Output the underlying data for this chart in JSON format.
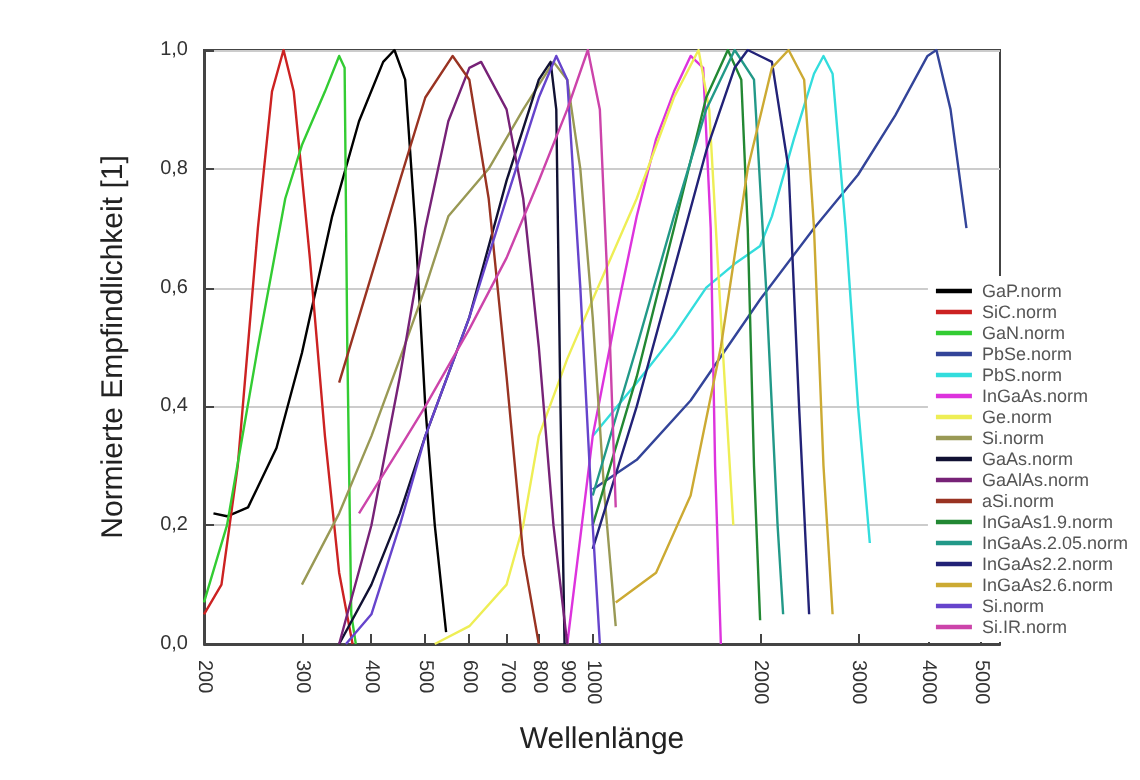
{
  "chart_data": {
    "type": "line",
    "xlabel": "Wellenlänge",
    "ylabel": "Normierte Empfindlichkeit [1]",
    "log": "x",
    "xlim": [
      200,
      5400
    ],
    "ylim": [
      0,
      1
    ],
    "xticks": [
      200,
      300,
      400,
      500,
      600,
      700,
      800,
      900,
      1000,
      2000,
      3000,
      4000,
      5000
    ],
    "yticks": [
      {
        "value": 0,
        "label": "0,0"
      },
      {
        "value": 0.2,
        "label": "0,2"
      },
      {
        "value": 0.4,
        "label": "0,4"
      },
      {
        "value": 0.6,
        "label": "0,6"
      },
      {
        "value": 0.8,
        "label": "0,8"
      },
      {
        "value": 1,
        "label": "1,0"
      }
    ],
    "grid": "y",
    "legend": "right",
    "marker": "none",
    "line_style": "solid",
    "series": [
      {
        "name": "GaP.norm",
        "color": "#000000",
        "x": [
          208,
          220,
          240,
          270,
          300,
          340,
          380,
          420,
          440,
          460,
          480,
          500,
          520,
          545
        ],
        "values": [
          0.22,
          0.215,
          0.23,
          0.33,
          0.49,
          0.72,
          0.88,
          0.98,
          1.0,
          0.95,
          0.7,
          0.4,
          0.2,
          0.02
        ]
      },
      {
        "name": "SiC.norm",
        "color": "#cc2222",
        "x": [
          200,
          215,
          230,
          250,
          265,
          278,
          290,
          310,
          330,
          350,
          370
        ],
        "values": [
          0.05,
          0.1,
          0.3,
          0.7,
          0.93,
          1.0,
          0.93,
          0.65,
          0.35,
          0.12,
          0.0
        ]
      },
      {
        "name": "GaN.norm",
        "color": "#33cc33",
        "x": [
          200,
          220,
          250,
          280,
          300,
          330,
          350,
          358,
          362,
          368,
          375
        ],
        "values": [
          0.07,
          0.2,
          0.5,
          0.75,
          0.84,
          0.93,
          0.99,
          0.97,
          0.5,
          0.05,
          0.0
        ]
      },
      {
        "name": "PbSe.norm",
        "color": "#334499",
        "x": [
          1000,
          1200,
          1500,
          2000,
          2500,
          3000,
          3500,
          4000,
          4150,
          4400,
          4700
        ],
        "values": [
          0.26,
          0.31,
          0.41,
          0.58,
          0.7,
          0.79,
          0.89,
          0.99,
          1.0,
          0.9,
          0.7
        ]
      },
      {
        "name": "PbS.norm",
        "color": "#33dddd",
        "x": [
          1000,
          1200,
          1400,
          1600,
          1800,
          2000,
          2100,
          2300,
          2500,
          2600,
          2700,
          2850,
          3000,
          3150
        ],
        "values": [
          0.35,
          0.44,
          0.52,
          0.6,
          0.64,
          0.67,
          0.72,
          0.85,
          0.96,
          0.99,
          0.96,
          0.7,
          0.4,
          0.17
        ]
      },
      {
        "name": "InGaAs.norm",
        "color": "#dd33dd",
        "x": [
          900,
          1000,
          1100,
          1200,
          1300,
          1400,
          1500,
          1580,
          1630,
          1660,
          1700
        ],
        "values": [
          0.0,
          0.35,
          0.55,
          0.72,
          0.85,
          0.93,
          0.99,
          0.97,
          0.7,
          0.3,
          0.0
        ]
      },
      {
        "name": "Ge.norm",
        "color": "#eeee55",
        "x": [
          520,
          600,
          700,
          750,
          800,
          900,
          1000,
          1200,
          1400,
          1550,
          1620,
          1700,
          1790
        ],
        "values": [
          0.0,
          0.03,
          0.1,
          0.2,
          0.35,
          0.48,
          0.58,
          0.75,
          0.92,
          1.0,
          0.9,
          0.55,
          0.2
        ]
      },
      {
        "name": "Si.norm",
        "color": "#999955",
        "x": [
          300,
          350,
          400,
          450,
          500,
          550,
          650,
          750,
          850,
          900,
          950,
          1000,
          1050,
          1100
        ],
        "values": [
          0.1,
          0.22,
          0.35,
          0.48,
          0.6,
          0.72,
          0.8,
          0.9,
          0.98,
          0.95,
          0.8,
          0.55,
          0.25,
          0.03
        ]
      },
      {
        "name": "GaAs.norm",
        "color": "#111133",
        "x": [
          350,
          400,
          450,
          500,
          600,
          700,
          800,
          840,
          860,
          875,
          890
        ],
        "values": [
          0.0,
          0.1,
          0.22,
          0.35,
          0.55,
          0.78,
          0.95,
          0.98,
          0.9,
          0.4,
          0.0
        ]
      },
      {
        "name": "GaAlAs.norm",
        "color": "#772277",
        "x": [
          350,
          400,
          450,
          500,
          550,
          600,
          630,
          700,
          750,
          800,
          850,
          900
        ],
        "values": [
          0.0,
          0.2,
          0.45,
          0.7,
          0.88,
          0.97,
          0.98,
          0.9,
          0.75,
          0.5,
          0.2,
          0.0
        ]
      },
      {
        "name": "aSi.norm",
        "color": "#993322",
        "x": [
          350,
          400,
          450,
          500,
          560,
          600,
          650,
          700,
          750,
          800
        ],
        "values": [
          0.44,
          0.62,
          0.78,
          0.92,
          0.99,
          0.95,
          0.75,
          0.45,
          0.15,
          0.0
        ]
      },
      {
        "name": "InGaAs1.9.norm",
        "color": "#228833",
        "x": [
          1000,
          1200,
          1400,
          1600,
          1750,
          1850,
          1900,
          1950,
          2000
        ],
        "values": [
          0.2,
          0.45,
          0.7,
          0.92,
          1.0,
          0.95,
          0.7,
          0.3,
          0.04
        ]
      },
      {
        "name": "InGaAs.2.05.norm",
        "color": "#229988",
        "x": [
          1000,
          1200,
          1400,
          1600,
          1800,
          1950,
          2050,
          2150,
          2200
        ],
        "values": [
          0.25,
          0.5,
          0.72,
          0.9,
          1.0,
          0.95,
          0.6,
          0.2,
          0.05
        ]
      },
      {
        "name": "InGaAs2.2.norm",
        "color": "#222277",
        "x": [
          1000,
          1200,
          1400,
          1600,
          1800,
          1900,
          2100,
          2250,
          2350,
          2450
        ],
        "values": [
          0.16,
          0.4,
          0.63,
          0.83,
          0.97,
          1.0,
          0.98,
          0.8,
          0.4,
          0.05
        ]
      },
      {
        "name": "InGaAs2.6.norm",
        "color": "#ccaa33",
        "x": [
          1100,
          1300,
          1500,
          1700,
          1900,
          2100,
          2250,
          2400,
          2500,
          2600,
          2700
        ],
        "values": [
          0.07,
          0.12,
          0.25,
          0.5,
          0.8,
          0.97,
          1.0,
          0.95,
          0.7,
          0.3,
          0.05
        ]
      },
      {
        "name": "Si.norm",
        "color": "#6644cc",
        "x": [
          360,
          400,
          450,
          500,
          600,
          700,
          800,
          860,
          900,
          950,
          1000,
          1030
        ],
        "values": [
          0.0,
          0.05,
          0.2,
          0.35,
          0.55,
          0.75,
          0.92,
          0.99,
          0.95,
          0.6,
          0.2,
          0.0
        ]
      },
      {
        "name": "Si.IR.norm",
        "color": "#cc44aa",
        "x": [
          380,
          450,
          500,
          600,
          700,
          800,
          900,
          980,
          1030,
          1070,
          1100
        ],
        "values": [
          0.22,
          0.33,
          0.4,
          0.53,
          0.65,
          0.78,
          0.9,
          1.0,
          0.9,
          0.55,
          0.23
        ]
      }
    ]
  }
}
